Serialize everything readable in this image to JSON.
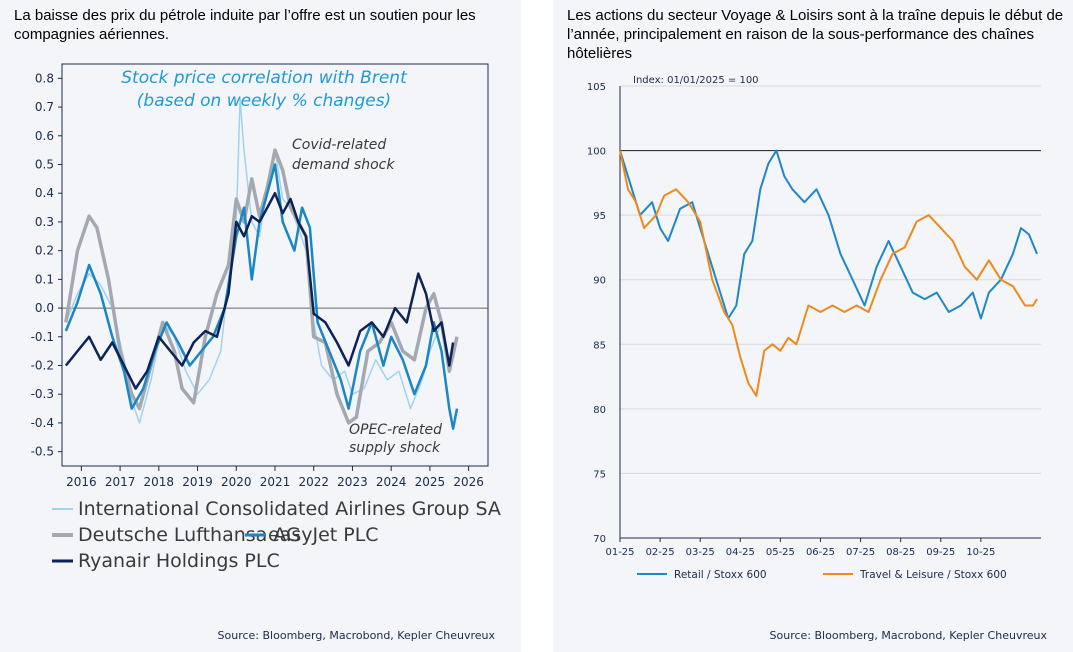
{
  "left": {
    "title": "La baisse des prix du pétrole induite par l’offre est un soutien pour les compagnies aériennes.",
    "source": "Source: Bloomberg, Macrobond, Kepler Cheuvreux"
  },
  "right": {
    "title": "Les actions du secteur Voyage & Loisirs sont à la traîne depuis le début de l’année, principalement en raison de la sous-performance des chaînes hôtelières",
    "source": "Source: Bloomberg, Macrobond, Kepler Cheuvreux"
  },
  "chart_data": [
    {
      "type": "line",
      "title": "Stock price correlation with Brent",
      "subtitle": "(based on weekly % changes)",
      "ylim": [
        -0.55,
        0.85
      ],
      "yticks": [
        "0.8",
        "0.7",
        "0.6",
        "0.5",
        "0.4",
        "0.3",
        "0.2",
        "0.1",
        "0.0",
        "-0.1",
        "-0.2",
        "-0.3",
        "-0.4",
        "-0.5"
      ],
      "xlim": [
        2015.5,
        2026.5
      ],
      "xticks": [
        "2016",
        "2017",
        "2018",
        "2019",
        "2020",
        "2021",
        "2022",
        "2023",
        "2024",
        "2025",
        "2026"
      ],
      "annotations": [
        "Covid-related",
        "demand shock",
        "OPEC-related",
        "supply shock"
      ],
      "series": [
        {
          "name": "International Consolidated Airlines Group SA",
          "color": "#9fd3ee",
          "x": [
            2015.6,
            2015.9,
            2016.2,
            2016.5,
            2016.8,
            2017.1,
            2017.3,
            2017.5,
            2017.8,
            2018.1,
            2018.4,
            2018.7,
            2019.0,
            2019.3,
            2019.6,
            2019.8,
            2020.0,
            2020.1,
            2020.2,
            2020.4,
            2020.6,
            2020.8,
            2021.0,
            2021.2,
            2021.4,
            2021.6,
            2021.8,
            2022.0,
            2022.2,
            2022.5,
            2022.8,
            2023.0,
            2023.3,
            2023.6,
            2023.9,
            2024.2,
            2024.5,
            2024.8,
            2025.0,
            2025.3,
            2025.5,
            2025.7
          ],
          "y": [
            -0.05,
            0.05,
            0.12,
            0.08,
            0.0,
            -0.18,
            -0.32,
            -0.4,
            -0.25,
            -0.05,
            -0.1,
            -0.22,
            -0.3,
            -0.25,
            -0.15,
            0.1,
            0.3,
            0.73,
            0.55,
            0.3,
            0.25,
            0.42,
            0.55,
            0.38,
            0.35,
            0.28,
            0.2,
            -0.05,
            -0.2,
            -0.25,
            -0.22,
            -0.3,
            -0.28,
            -0.18,
            -0.25,
            -0.22,
            -0.35,
            -0.25,
            -0.15,
            -0.05,
            -0.18,
            -0.1
          ]
        },
        {
          "name": "Deutsche Lufthansa AG",
          "color": "#a4a9b1",
          "x": [
            2015.6,
            2015.9,
            2016.2,
            2016.4,
            2016.7,
            2017.0,
            2017.3,
            2017.5,
            2017.8,
            2018.1,
            2018.4,
            2018.6,
            2018.9,
            2019.2,
            2019.5,
            2019.8,
            2020.0,
            2020.2,
            2020.4,
            2020.6,
            2020.8,
            2021.0,
            2021.2,
            2021.4,
            2021.6,
            2021.8,
            2022.0,
            2022.3,
            2022.6,
            2022.9,
            2023.1,
            2023.4,
            2023.7,
            2024.0,
            2024.3,
            2024.6,
            2024.9,
            2025.1,
            2025.3,
            2025.5,
            2025.7
          ],
          "y": [
            -0.05,
            0.2,
            0.32,
            0.28,
            0.1,
            -0.15,
            -0.3,
            -0.35,
            -0.2,
            -0.05,
            -0.15,
            -0.28,
            -0.33,
            -0.1,
            0.05,
            0.15,
            0.38,
            0.3,
            0.45,
            0.32,
            0.42,
            0.55,
            0.48,
            0.35,
            0.3,
            0.25,
            -0.1,
            -0.12,
            -0.3,
            -0.4,
            -0.38,
            -0.15,
            -0.12,
            -0.05,
            -0.15,
            -0.18,
            0.0,
            0.05,
            -0.05,
            -0.22,
            -0.1
          ]
        },
        {
          "name": "easyJet PLC",
          "color": "#1a86c5",
          "x": [
            2015.6,
            2015.9,
            2016.2,
            2016.5,
            2016.8,
            2017.1,
            2017.3,
            2017.6,
            2017.9,
            2018.2,
            2018.5,
            2018.8,
            2019.1,
            2019.4,
            2019.7,
            2020.0,
            2020.2,
            2020.4,
            2020.6,
            2020.8,
            2021.0,
            2021.2,
            2021.5,
            2021.7,
            2021.9,
            2022.1,
            2022.4,
            2022.7,
            2022.9,
            2023.2,
            2023.5,
            2023.8,
            2024.0,
            2024.3,
            2024.6,
            2024.9,
            2025.1,
            2025.3,
            2025.5,
            2025.6,
            2025.7
          ],
          "y": [
            -0.08,
            0.02,
            0.15,
            0.05,
            -0.1,
            -0.22,
            -0.35,
            -0.28,
            -0.15,
            -0.05,
            -0.12,
            -0.2,
            -0.15,
            -0.1,
            0.0,
            0.25,
            0.35,
            0.1,
            0.3,
            0.4,
            0.5,
            0.3,
            0.2,
            0.35,
            0.28,
            -0.05,
            -0.15,
            -0.25,
            -0.35,
            -0.15,
            -0.05,
            -0.2,
            -0.1,
            -0.18,
            -0.3,
            -0.2,
            -0.05,
            -0.15,
            -0.35,
            -0.42,
            -0.35
          ]
        },
        {
          "name": "Ryanair Holdings PLC",
          "color": "#0e2355",
          "x": [
            2015.6,
            2015.9,
            2016.2,
            2016.5,
            2016.8,
            2017.1,
            2017.4,
            2017.7,
            2018.0,
            2018.3,
            2018.6,
            2018.9,
            2019.2,
            2019.5,
            2019.8,
            2020.0,
            2020.2,
            2020.4,
            2020.6,
            2020.8,
            2021.0,
            2021.2,
            2021.4,
            2021.6,
            2021.8,
            2022.0,
            2022.3,
            2022.6,
            2022.9,
            2023.2,
            2023.5,
            2023.8,
            2024.1,
            2024.4,
            2024.7,
            2024.9,
            2025.1,
            2025.3,
            2025.5,
            2025.6
          ],
          "y": [
            -0.2,
            -0.15,
            -0.1,
            -0.18,
            -0.12,
            -0.2,
            -0.28,
            -0.22,
            -0.1,
            -0.15,
            -0.2,
            -0.12,
            -0.08,
            -0.1,
            0.05,
            0.3,
            0.25,
            0.32,
            0.3,
            0.35,
            0.4,
            0.33,
            0.38,
            0.3,
            0.25,
            -0.02,
            -0.05,
            -0.12,
            -0.2,
            -0.08,
            -0.05,
            -0.1,
            0.0,
            -0.05,
            0.12,
            0.05,
            -0.08,
            -0.05,
            -0.2,
            -0.12
          ]
        }
      ]
    },
    {
      "type": "line",
      "index_note": "Index: 01/01/2025 = 100",
      "ylim": [
        70,
        105
      ],
      "yticks": [
        "105",
        "100",
        "95",
        "90",
        "85",
        "80",
        "75",
        "70"
      ],
      "xlim": [
        0,
        10.5
      ],
      "xticks": [
        "01-25",
        "02-25",
        "03-25",
        "04-25",
        "05-25",
        "06-25",
        "07-25",
        "08-25",
        "09-25",
        "10-25"
      ],
      "reference_value": 100,
      "series": [
        {
          "name": "Retail / Stoxx 600",
          "color": "#1f87c6",
          "x": [
            0,
            0.2,
            0.5,
            0.8,
            1.0,
            1.2,
            1.5,
            1.8,
            2.0,
            2.2,
            2.5,
            2.7,
            2.9,
            3.1,
            3.3,
            3.5,
            3.7,
            3.9,
            4.1,
            4.3,
            4.6,
            4.9,
            5.2,
            5.5,
            5.8,
            6.1,
            6.4,
            6.7,
            7.0,
            7.3,
            7.6,
            7.9,
            8.2,
            8.5,
            8.8,
            9.0,
            9.2,
            9.5,
            9.8,
            10.0,
            10.2,
            10.4
          ],
          "y": [
            100,
            98,
            95,
            96,
            94,
            93,
            95.5,
            96,
            94,
            92,
            89,
            87,
            88,
            92,
            93,
            97,
            99,
            100,
            98,
            97,
            96,
            97,
            95,
            92,
            90,
            88,
            91,
            93,
            91,
            89,
            88.5,
            89,
            87.5,
            88,
            89,
            87,
            89,
            90,
            92,
            94,
            93.5,
            92
          ]
        },
        {
          "name": "Travel & Leisure / Stoxx 600",
          "color": "#ed8a1c",
          "x": [
            0,
            0.2,
            0.4,
            0.6,
            0.9,
            1.1,
            1.4,
            1.7,
            2.0,
            2.3,
            2.6,
            2.8,
            3.0,
            3.2,
            3.4,
            3.6,
            3.8,
            4.0,
            4.2,
            4.4,
            4.7,
            5.0,
            5.3,
            5.6,
            5.9,
            6.2,
            6.5,
            6.8,
            7.1,
            7.4,
            7.7,
            8.0,
            8.3,
            8.6,
            8.9,
            9.2,
            9.5,
            9.8,
            10.1,
            10.3,
            10.4
          ],
          "y": [
            100,
            97,
            96,
            94,
            95,
            96.5,
            97,
            96,
            94.5,
            90,
            87.5,
            86.5,
            84,
            82,
            81,
            84.5,
            85,
            84.5,
            85.5,
            85,
            88,
            87.5,
            88,
            87.5,
            88,
            87.5,
            90,
            92,
            92.5,
            94.5,
            95,
            94,
            93,
            91,
            90,
            91.5,
            90,
            89.5,
            88,
            88,
            88.5
          ]
        }
      ]
    }
  ]
}
